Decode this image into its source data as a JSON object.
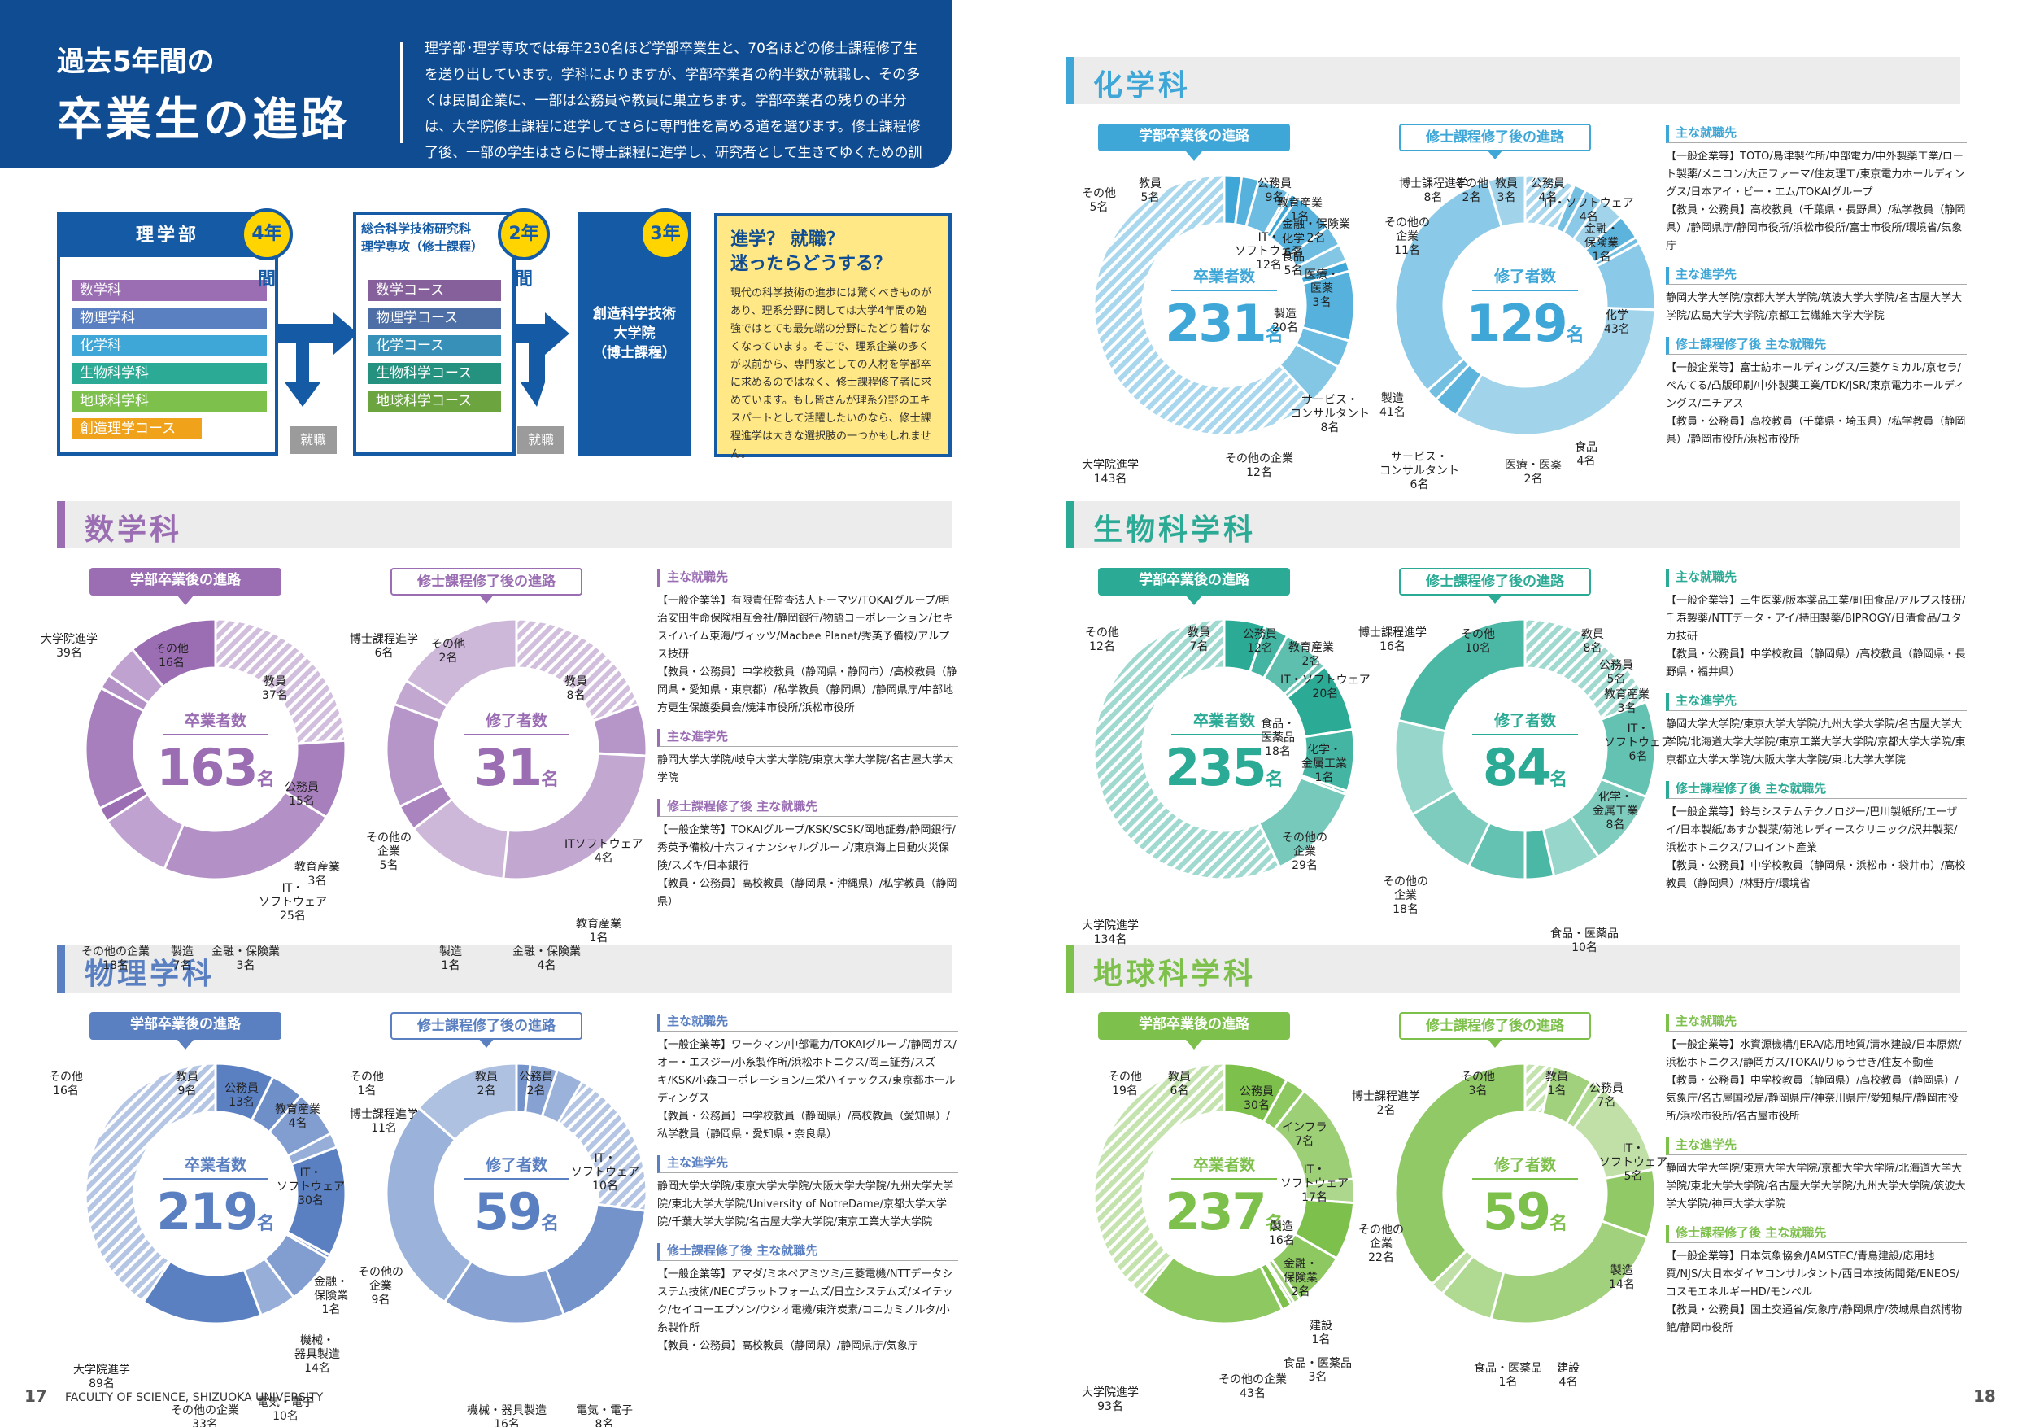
{
  "header": {
    "small": "過去5年間の",
    "big": "卒業生の進路",
    "text": "理学部･理学専攻では毎年230名ほど学部卒業生と、70名ほどの修士課程修了生を送り出しています。学科によりますが、学部卒業者の約半数が就職し、その多くは民間企業に、一部は公務員や教員に巣立ちます。学部卒業者の残りの半分は、大学院修士課程に進学してさらに専門性を高める道を選びます。修士課程修了後、一部の学生はさらに博士課程に進学し、研究者として生きてゆくための訓練を受けることになります。"
  },
  "flow": {
    "faculty": "理学部",
    "faculty_years": "4年間",
    "depts": [
      "数学科",
      "物理学科",
      "化学科",
      "生物科学科",
      "地球科学科",
      "創造理学コース"
    ],
    "grad_title": "総合科学技術研究科\n理学専攻（修士課程）",
    "grad_years": "2年間",
    "courses": [
      "数学コース",
      "物理学コース",
      "化学コース",
      "生物科学コース",
      "地球科学コース"
    ],
    "doc_title": "創造科学技術\n大学院\n（博士課程）",
    "doc_years": "3年間",
    "employ": "就職"
  },
  "question": {
    "title": "進学？ 就職？\n迷ったらどうする？",
    "body": "現代の科学技術の進歩には驚くべきものがあり、理系分野に関しては大学4年間の勉強ではとても最先端の分野にたどり着けなくなっています。そこで、理系企業の多くが以前から、専門家としての人材を学部卒に求めるのではなく、修士課程修了者に求めています。もし皆さんが理系分野のエキスパートとして活躍したいのなら、修士課程進学は大きな選択肢の一つかもしれません。"
  },
  "common": {
    "pill_bach": "学部卒業後の進路",
    "pill_mast": "修士課程修了後の進路",
    "center_bach": "卒業者数",
    "center_mast": "修了者数",
    "unit": "名",
    "h_jobs": "主な就職先",
    "h_grad": "主な進学先",
    "h_mjobs": "修士課程修了後 主な就職先"
  },
  "colors": {
    "math": "#9b6eb4",
    "phys": "#5b80c2",
    "chem": "#3fa7d7",
    "bio": "#2bab95",
    "earth": "#7ec04c",
    "navy": "#155aa5"
  },
  "math": {
    "title": "数学科",
    "bach_total": "163",
    "mast_total": "31",
    "jobs": "【一般企業等】有限責任監査法人トーマツ/TOKAIグループ/明治安田生命保険相互会社/静岡銀行/物語コーポレーション/セキスイハイム東海/ヴィッツ/Macbee Planet/秀英予備校/アルプス技研\n【教員・公務員】中学校教員（静岡県・静岡市）/高校教員（静岡県・愛知県・東京都）/私学教員（静岡県）/静岡県庁/中部地方更生保護委員会/焼津市役所/浜松市役所",
    "grad": "静岡大学大学院/岐阜大学大学院/東京大学大学院/名古屋大学大学院",
    "mjobs": "【一般企業等】TOKAIグループ/KSK/SCSK/岡地証券/静岡銀行/秀英予備校/十六フィナンシャルグループ/東京海上日動火災保険/スズキ/日本銀行\n【教員・公務員】高校教員（静岡県・沖縄県）/私学教員（静岡県）",
    "bach_labels": [
      [
        "大学院進学",
        "39名"
      ],
      [
        "その他",
        "16名"
      ],
      [
        "教員",
        "37名"
      ],
      [
        "公務員",
        "15名"
      ],
      [
        "教育産業",
        "3名"
      ],
      [
        "IT・\nソフトウェア",
        "25名"
      ],
      [
        "金融・保険業",
        "3名"
      ],
      [
        "製造",
        "7名"
      ],
      [
        "その他の企業",
        "18名"
      ]
    ],
    "mast_labels": [
      [
        "博士課程進学",
        "6名"
      ],
      [
        "その他",
        "2名"
      ],
      [
        "教員",
        "8名"
      ],
      [
        "ITソフトウェア",
        "4名"
      ],
      [
        "教育産業",
        "1名"
      ],
      [
        "金融・保険業",
        "4名"
      ],
      [
        "製造",
        "1名"
      ],
      [
        "その他の\n企業",
        "5名"
      ]
    ]
  },
  "phys": {
    "title": "物理学科",
    "bach_total": "219",
    "mast_total": "59",
    "jobs": "【一般企業等】ワークマン/中部電力/TOKAIグループ/静岡ガス/オー・エスジー/小糸製作所/浜松ホトニクス/岡三証券/スズキ/KSK/小森コーポレーション/三栄ハイテックス/東京都ホールディングス\n【教員・公務員】中学校教員（静岡県）/高校教員（愛知県）/私学教員（静岡県・愛知県・奈良県）",
    "grad": "静岡大学大学院/東京大学大学院/大阪大学大学院/九州大学大学院/東北大学大学院/University of NotreDame/京都大学大学院/千葉大学大学院/名古屋大学大学院/東京工業大学大学院",
    "mjobs": "【一般企業等】アマダ/ミネベアミツミ/三菱電機/NTTデータシステム技術/NECプラットフォームズ/日立システムズ/メイテック/セイコーエプソン/ウシオ電機/東洋炭素/コニカミノルタ/小糸製作所\n【教員・公務員】高校教員（静岡県）/静岡県庁/気象庁",
    "bach_labels": [
      [
        "その他",
        "16名"
      ],
      [
        "教員",
        "9名"
      ],
      [
        "公務員",
        "13名"
      ],
      [
        "教育産業",
        "4名"
      ],
      [
        "IT・\nソフトウェア",
        "30名"
      ],
      [
        "金融・\n保険業",
        "1名"
      ],
      [
        "機械・\n器具製造",
        "14名"
      ],
      [
        "電気・電子",
        "10名"
      ],
      [
        "その他の企業",
        "33名"
      ],
      [
        "大学院進学",
        "89名"
      ]
    ],
    "mast_labels": [
      [
        "その他",
        "1名"
      ],
      [
        "教員",
        "2名"
      ],
      [
        "公務員",
        "2名"
      ],
      [
        "博士課程進学",
        "11名"
      ],
      [
        "IT・\nソフトウェア",
        "10名"
      ],
      [
        "その他の\n企業",
        "9名"
      ],
      [
        "機械・器具製造",
        "16名"
      ],
      [
        "電気・電子",
        "8名"
      ]
    ]
  },
  "chem": {
    "title": "化学科",
    "bach_total": "231",
    "mast_total": "129",
    "jobs": "【一般企業等】TOTO/島津製作所/中部電力/中外製薬工業/ロート製薬/メニコン/大正ファーマ/住友理工/東京電力ホールディングス/日本アイ・ビー・エム/TOKAIグループ\n【教員・公務員】高校教員（千葉県・長野県）/私学教員（静岡県）/静岡県庁/静岡市役所/浜松市役所/富士市役所/環境省/気象庁",
    "grad": "静岡大学大学院/京都大学大学院/筑波大学大学院/名古屋大学大学院/広島大学大学院/京都工芸繊維大学大学院",
    "mjobs": "【一般企業等】富士紡ホールディングス/三菱ケミカル/京セラ/ぺんてる/凸版印刷/中外製薬工業/TDK/JSR/東京電力ホールディングス/ニチアス\n【教員・公務員】高校教員（千葉県・埼玉県）/私学教員（静岡県）/静岡市役所/浜松市役所",
    "bach_labels": [
      [
        "その他",
        "5名"
      ],
      [
        "教員",
        "5名"
      ],
      [
        "公務員",
        "9名"
      ],
      [
        "教育産業",
        "1名"
      ],
      [
        "金融・保険業",
        "2名"
      ],
      [
        "IT・\nソフトウェア",
        "12名"
      ],
      [
        "化学",
        "6名"
      ],
      [
        "食品",
        "5名"
      ],
      [
        "医療・\n医薬",
        "3名"
      ],
      [
        "製造",
        "20名"
      ],
      [
        "サービス・\nコンサルタント",
        "8名"
      ],
      [
        "その他の企業",
        "12名"
      ],
      [
        "大学院進学",
        "143名"
      ]
    ],
    "mast_labels": [
      [
        "博士課程進学",
        "8名"
      ],
      [
        "その他",
        "2名"
      ],
      [
        "教員",
        "3名"
      ],
      [
        "公務員",
        "4名"
      ],
      [
        "IT・ソフトウェア",
        "4名"
      ],
      [
        "金融・\n保険業",
        "1名"
      ],
      [
        "その他の\n企業",
        "11名"
      ],
      [
        "化学",
        "43名"
      ],
      [
        "食品",
        "4名"
      ],
      [
        "医療・医薬",
        "2名"
      ],
      [
        "製造",
        "41名"
      ],
      [
        "サービス・\nコンサルタント",
        "6名"
      ]
    ]
  },
  "bio": {
    "title": "生物科学科",
    "bach_total": "235",
    "mast_total": "84",
    "jobs": "【一般企業等】三生医薬/阪本薬品工業/町田食品/アルプス技研/千寿製薬/NTTデータ・アイ/持田製薬/BIPROGY/日清食品/ユタカ技研\n【教員・公務員】中学校教員（静岡県）/高校教員（静岡県・長野県・福井県）",
    "grad": "静岡大学大学院/東京大学大学院/九州大学大学院/名古屋大学大学院/北海道大学大学院/東京工業大学大学院/京都大学大学院/東京都立大学大学院/大阪大学大学院/東北大学大学院",
    "mjobs": "【一般企業等】鈴与システムテクノロジー/巴川製紙所/エーザイ/日本製紙/あすか製薬/菊池レディースクリニック/沢井製薬/浜松ホトニクス/フロイント産業\n【教員・公務員】中学校教員（静岡県・浜松市・袋井市）/高校教員（静岡県）/林野庁/環境省",
    "bach_labels": [
      [
        "その他",
        "12名"
      ],
      [
        "教員",
        "7名"
      ],
      [
        "公務員",
        "12名"
      ],
      [
        "教育産業",
        "2名"
      ],
      [
        "IT・ソフトウェア",
        "20名"
      ],
      [
        "食品・\n医薬品",
        "18名"
      ],
      [
        "化学・\n金属工業",
        "1名"
      ],
      [
        "その他の\n企業",
        "29名"
      ],
      [
        "大学院進学",
        "134名"
      ]
    ],
    "mast_labels": [
      [
        "博士課程進学",
        "16名"
      ],
      [
        "その他",
        "10名"
      ],
      [
        "教員",
        "8名"
      ],
      [
        "公務員",
        "5名"
      ],
      [
        "教育産業",
        "3名"
      ],
      [
        "IT・\nソフトウェア",
        "6名"
      ],
      [
        "化学・\n金属工業",
        "8名"
      ],
      [
        "食品・医薬品",
        "10名"
      ],
      [
        "その他の\n企業",
        "18名"
      ]
    ]
  },
  "earth": {
    "title": "地球科学科",
    "bach_total": "237",
    "mast_total": "59",
    "jobs": "【一般企業等】水資源機構/JERA/応用地質/清水建設/日本原燃/浜松ホトニクス/静岡ガス/TOKAI/りゅうせき/住友不動産\n【教員・公務員】中学校教員（静岡県）/高校教員（静岡県）/気象庁/名古屋国税局/静岡県庁/神奈川県庁/愛知県庁/静岡市役所/浜松市役所/名古屋市役所",
    "grad": "静岡大学大学院/東京大学大学院/京都大学大学院/北海道大学大学院/東北大学大学院/名古屋大学大学院/九州大学大学院/筑波大学大学院/神戸大学大学院",
    "mjobs": "【一般企業等】日本気象協会/JAMSTEC/青島建設/応用地質/NJS/大日本ダイヤコンサルタント/西日本技術開発/ENEOS/コスモエネルギーHD/モンベル\n【教員・公務員】国土交通省/気象庁/静岡県庁/茨城県自然博物館/静岡市役所",
    "bach_labels": [
      [
        "その他",
        "19名"
      ],
      [
        "教員",
        "6名"
      ],
      [
        "公務員",
        "30名"
      ],
      [
        "インフラ",
        "7名"
      ],
      [
        "IT・\nソフトウェア",
        "17名"
      ],
      [
        "製造",
        "16名"
      ],
      [
        "金融・\n保険業",
        "2名"
      ],
      [
        "建設",
        "1名"
      ],
      [
        "食品・医薬品",
        "3名"
      ],
      [
        "その他の企業",
        "43名"
      ],
      [
        "大学院進学",
        "93名"
      ]
    ],
    "mast_labels": [
      [
        "博士課程進学",
        "2名"
      ],
      [
        "その他",
        "3名"
      ],
      [
        "教員",
        "1名"
      ],
      [
        "公務員",
        "7名"
      ],
      [
        "IT・\nソフトウェア",
        "5名"
      ],
      [
        "製造",
        "14名"
      ],
      [
        "建設",
        "4名"
      ],
      [
        "食品・医薬品",
        "1名"
      ],
      [
        "その他の\n企業",
        "22名"
      ]
    ]
  },
  "footer": {
    "left_no": "17",
    "left_text": "FACULTY OF SCIENCE, SHIZUOKA UNIVERSITY",
    "right_no": "18"
  }
}
